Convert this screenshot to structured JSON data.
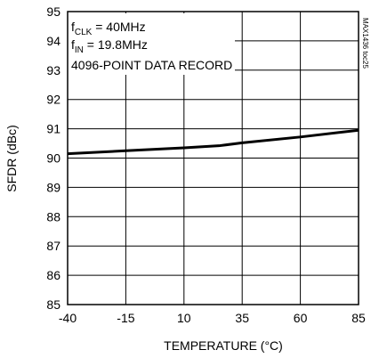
{
  "chart_data": {
    "type": "line",
    "title": "",
    "xlabel": "TEMPERATURE (°C)",
    "ylabel": "SFDR (dBc)",
    "xlim": [
      -40,
      85
    ],
    "ylim": [
      85,
      95
    ],
    "xticks": [
      -40,
      -15,
      10,
      35,
      60,
      85
    ],
    "yticks": [
      85,
      86,
      87,
      88,
      89,
      90,
      91,
      92,
      93,
      94,
      95
    ],
    "grid": true,
    "series": [
      {
        "x": [
          -40,
          -15,
          10,
          25,
          35,
          60,
          85
        ],
        "y": [
          90.15,
          90.25,
          90.35,
          90.42,
          90.52,
          90.72,
          90.95
        ]
      }
    ],
    "annotations": {
      "line1_main": "f",
      "line1_sub": "CLK",
      "line1_rest": " = 40MHz",
      "line2_main": "f",
      "line2_sub": "IN",
      "line2_rest": " = 19.8MHz",
      "line3": "4096-POINT DATA RECORD"
    },
    "side_label": "MAX1436 toc25"
  },
  "colors": {
    "line": "#000000",
    "grid": "#000000",
    "background": "#ffffff"
  }
}
